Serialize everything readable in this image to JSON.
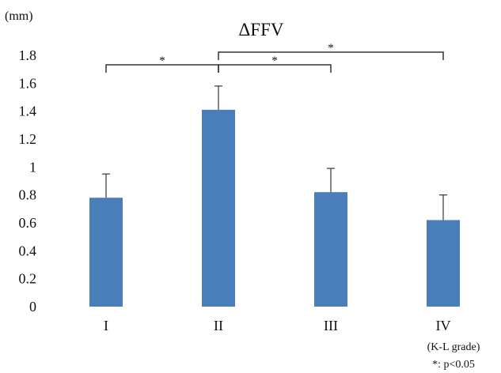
{
  "chart_data": {
    "type": "bar",
    "title": "ΔFFV",
    "ylabel": "(mm)",
    "xlabel": "(K-L grade)",
    "footnote": "*: p<0.05",
    "categories": [
      "I",
      "II",
      "III",
      "IV"
    ],
    "values": [
      0.78,
      1.41,
      0.82,
      0.62
    ],
    "error": [
      0.17,
      0.17,
      0.17,
      0.18
    ],
    "ylim": [
      0,
      1.8
    ],
    "yticks": [
      0,
      0.2,
      0.4,
      0.6,
      0.8,
      1,
      1.2,
      1.4,
      1.6,
      1.8
    ],
    "grid": false,
    "colors": {
      "bar": "#4a7ebb",
      "error": "#444444",
      "bracket": "#333333"
    },
    "significance": [
      {
        "from": 0,
        "to": 1,
        "label": "*"
      },
      {
        "from": 1,
        "to": 2,
        "label": "*"
      },
      {
        "from": 1,
        "to": 3,
        "label": "*"
      }
    ]
  }
}
